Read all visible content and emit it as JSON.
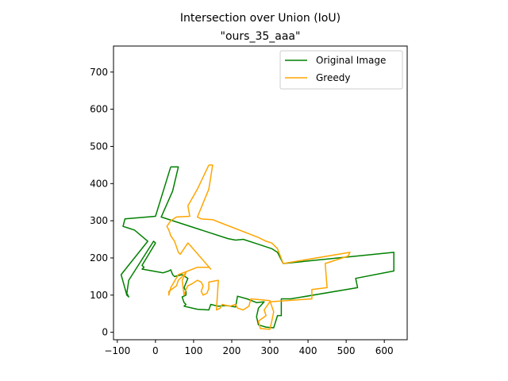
{
  "chart_data": {
    "type": "line",
    "title": "Intersection over Union (IoU)",
    "subtitle": "\"ours_35_aaa\"",
    "xlabel": "",
    "ylabel": "",
    "xlim": [
      -110,
      660
    ],
    "ylim": [
      -20,
      770
    ],
    "xticks": [
      -100,
      0,
      100,
      200,
      300,
      400,
      500,
      600
    ],
    "yticks": [
      0,
      100,
      200,
      300,
      400,
      500,
      600,
      700
    ],
    "grid": false,
    "legend_position": "top-right",
    "series": [
      {
        "name": "Original Image",
        "color": "#008000",
        "points": [
          [
            40,
            445
          ],
          [
            60,
            445
          ],
          [
            45,
            380
          ],
          [
            15,
            310
          ],
          [
            190,
            252
          ],
          [
            210,
            248
          ],
          [
            230,
            250
          ],
          [
            260,
            240
          ],
          [
            305,
            225
          ],
          [
            320,
            215
          ],
          [
            335,
            185
          ],
          [
            625,
            215
          ],
          [
            625,
            165
          ],
          [
            525,
            145
          ],
          [
            530,
            120
          ],
          [
            355,
            90
          ],
          [
            330,
            90
          ],
          [
            330,
            45
          ],
          [
            320,
            45
          ],
          [
            310,
            12
          ],
          [
            290,
            14
          ],
          [
            270,
            20
          ],
          [
            265,
            42
          ],
          [
            270,
            65
          ],
          [
            285,
            82
          ],
          [
            265,
            80
          ],
          [
            240,
            90
          ],
          [
            215,
            97
          ],
          [
            210,
            68
          ],
          [
            185,
            72
          ],
          [
            165,
            70
          ],
          [
            145,
            75
          ],
          [
            140,
            60
          ],
          [
            110,
            62
          ],
          [
            75,
            70
          ],
          [
            80,
            75
          ],
          [
            75,
            80
          ],
          [
            70,
            95
          ],
          [
            80,
            100
          ],
          [
            80,
            110
          ],
          [
            75,
            120
          ],
          [
            85,
            145
          ],
          [
            70,
            155
          ],
          [
            50,
            150
          ],
          [
            45,
            155
          ],
          [
            40,
            168
          ],
          [
            35,
            165
          ],
          [
            20,
            160
          ],
          [
            -35,
            170
          ],
          [
            -30,
            175
          ],
          [
            -35,
            180
          ],
          [
            0,
            240
          ],
          [
            -5,
            245
          ],
          [
            -70,
            140
          ],
          [
            -75,
            105
          ],
          [
            -70,
            95
          ],
          [
            -75,
            100
          ],
          [
            -90,
            155
          ],
          [
            -20,
            245
          ],
          [
            -55,
            275
          ],
          [
            -70,
            280
          ],
          [
            -85,
            285
          ],
          [
            -80,
            305
          ],
          [
            0,
            312
          ],
          [
            40,
            445
          ]
        ]
      },
      {
        "name": "Greedy",
        "color": "#ffa500",
        "points": [
          [
            140,
            450
          ],
          [
            150,
            450
          ],
          [
            140,
            385
          ],
          [
            110,
            310
          ],
          [
            120,
            305
          ],
          [
            150,
            303
          ],
          [
            170,
            295
          ],
          [
            270,
            255
          ],
          [
            290,
            245
          ],
          [
            305,
            240
          ],
          [
            320,
            225
          ],
          [
            335,
            185
          ],
          [
            510,
            215
          ],
          [
            505,
            205
          ],
          [
            445,
            185
          ],
          [
            450,
            120
          ],
          [
            410,
            115
          ],
          [
            410,
            90
          ],
          [
            300,
            82
          ],
          [
            285,
            60
          ],
          [
            290,
            45
          ],
          [
            270,
            30
          ],
          [
            275,
            10
          ],
          [
            300,
            8
          ],
          [
            305,
            30
          ],
          [
            310,
            55
          ],
          [
            300,
            85
          ],
          [
            250,
            90
          ],
          [
            245,
            70
          ],
          [
            230,
            60
          ],
          [
            215,
            65
          ],
          [
            210,
            75
          ],
          [
            195,
            70
          ],
          [
            175,
            75
          ],
          [
            170,
            65
          ],
          [
            160,
            60
          ],
          [
            165,
            140
          ],
          [
            140,
            135
          ],
          [
            140,
            118
          ],
          [
            135,
            105
          ],
          [
            125,
            100
          ],
          [
            120,
            110
          ],
          [
            125,
            125
          ],
          [
            120,
            135
          ],
          [
            110,
            140
          ],
          [
            95,
            130
          ],
          [
            85,
            125
          ],
          [
            80,
            115
          ],
          [
            75,
            100
          ],
          [
            70,
            140
          ],
          [
            80,
            160
          ],
          [
            60,
            140
          ],
          [
            55,
            125
          ],
          [
            35,
            110
          ],
          [
            35,
            100
          ],
          [
            40,
            120
          ],
          [
            60,
            155
          ],
          [
            85,
            165
          ],
          [
            110,
            175
          ],
          [
            140,
            175
          ],
          [
            145,
            170
          ],
          [
            90,
            235
          ],
          [
            85,
            240
          ],
          [
            65,
            210
          ],
          [
            60,
            215
          ],
          [
            50,
            245
          ],
          [
            40,
            260
          ],
          [
            35,
            275
          ],
          [
            30,
            285
          ],
          [
            40,
            300
          ],
          [
            55,
            310
          ],
          [
            90,
            312
          ],
          [
            85,
            340
          ],
          [
            110,
            385
          ],
          [
            140,
            450
          ]
        ]
      }
    ]
  }
}
